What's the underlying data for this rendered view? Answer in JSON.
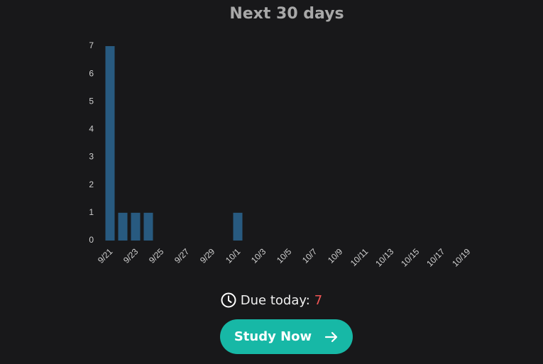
{
  "chart_data": {
    "type": "bar",
    "title": "Next 30 days",
    "categories": [
      "9/21",
      null,
      "9/23",
      null,
      "9/25",
      null,
      "9/27",
      null,
      "9/29",
      null,
      "10/1",
      null,
      "10/3",
      null,
      "10/5",
      null,
      "10/7",
      null,
      "10/9",
      null,
      "10/11",
      null,
      "10/13",
      null,
      "10/15",
      null,
      "10/17",
      null,
      "10/19"
    ],
    "values": [
      7,
      1,
      1,
      1,
      0,
      0,
      0,
      0,
      0,
      0,
      1,
      0,
      0,
      0,
      0,
      0,
      0,
      0,
      0,
      0,
      0,
      0,
      0,
      0,
      0,
      0,
      0,
      0,
      0
    ],
    "color": "#285a80",
    "ylim": [
      0,
      7
    ],
    "yticks": [
      0,
      1,
      2,
      3,
      4,
      5,
      6,
      7
    ],
    "grid": false
  },
  "due": {
    "label": "Due today:",
    "count": 7
  },
  "button": {
    "label": "Study Now"
  }
}
